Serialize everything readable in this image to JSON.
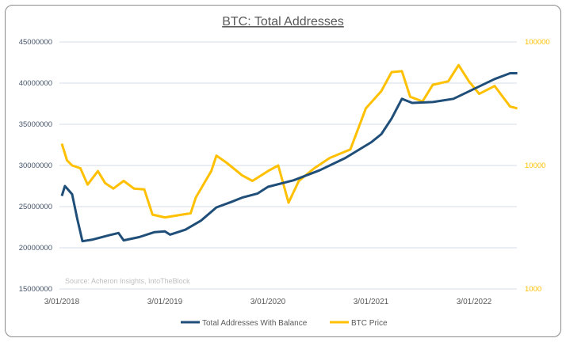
{
  "chart_data": {
    "type": "line",
    "title": "BTC: Total Addresses",
    "source": "Source: Acheron Insights, IntoTheBlock",
    "x_ticks": [
      "3/01/2018",
      "3/01/2019",
      "3/01/2020",
      "3/01/2021",
      "3/01/2022"
    ],
    "y_left_ticks": [
      "15000000",
      "20000000",
      "25000000",
      "30000000",
      "35000000",
      "40000000",
      "45000000"
    ],
    "y_left_range": [
      15000000,
      45000000
    ],
    "y_right_ticks": [
      "1000",
      "10000",
      "100000"
    ],
    "y_right_range": [
      1000,
      100000
    ],
    "y_right_scale": "log",
    "legend_position": "bottom",
    "grid": true,
    "series": [
      {
        "name": "Total Addresses With Balance",
        "color": "#1f4e79",
        "axis": "left",
        "x": [
          2018.0,
          2018.03,
          2018.1,
          2018.15,
          2018.2,
          2018.3,
          2018.45,
          2018.55,
          2018.6,
          2018.75,
          2018.9,
          2019.0,
          2019.05,
          2019.2,
          2019.35,
          2019.5,
          2019.65,
          2019.75,
          2019.9,
          2020.0,
          2020.25,
          2020.5,
          2020.75,
          2021.0,
          2021.1,
          2021.2,
          2021.3,
          2021.4,
          2021.6,
          2021.8,
          2022.0,
          2022.2,
          2022.35,
          2022.42
        ],
        "values": [
          26.3,
          27.5,
          26.5,
          23.5,
          20.8,
          21.0,
          21.5,
          21.8,
          20.9,
          21.3,
          21.9,
          22.0,
          21.6,
          22.2,
          23.3,
          24.9,
          25.6,
          26.1,
          26.6,
          27.4,
          28.2,
          29.4,
          30.9,
          32.8,
          33.8,
          35.7,
          38.1,
          37.6,
          37.7,
          38.1,
          39.3,
          40.5,
          41.2,
          41.2
        ]
      },
      {
        "name": "BTC Price",
        "color": "#ffc000",
        "axis": "right",
        "x": [
          2018.0,
          2018.05,
          2018.1,
          2018.18,
          2018.25,
          2018.35,
          2018.42,
          2018.5,
          2018.6,
          2018.7,
          2018.8,
          2018.88,
          2019.0,
          2019.25,
          2019.3,
          2019.45,
          2019.5,
          2019.6,
          2019.75,
          2019.85,
          2020.0,
          2020.1,
          2020.2,
          2020.3,
          2020.45,
          2020.6,
          2020.8,
          2020.95,
          2021.1,
          2021.2,
          2021.3,
          2021.38,
          2021.5,
          2021.6,
          2021.75,
          2021.85,
          2021.95,
          2022.05,
          2022.2,
          2022.35,
          2022.42
        ],
        "values": [
          15000,
          11000,
          10000,
          9500,
          7000,
          9000,
          7200,
          6500,
          7500,
          6500,
          6400,
          4000,
          3800,
          4100,
          5500,
          9000,
          12000,
          10500,
          8300,
          7500,
          9000,
          10000,
          5000,
          7500,
          9500,
          11500,
          13500,
          29000,
          40000,
          57000,
          58000,
          36000,
          33000,
          45000,
          48000,
          65000,
          48000,
          38000,
          44000,
          30000,
          29000
        ]
      }
    ]
  }
}
